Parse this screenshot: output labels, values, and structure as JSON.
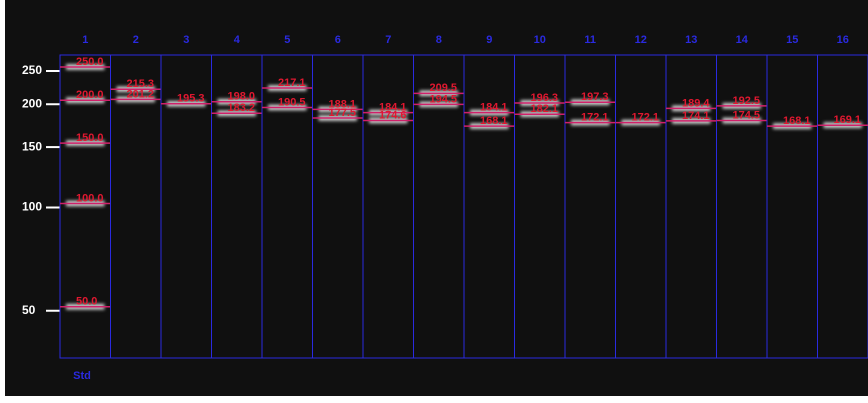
{
  "std_label": "Std",
  "axis_labels": [
    250,
    200,
    150,
    100,
    50
  ],
  "lanes": [
    {
      "number": "1",
      "bands": [
        "250.0",
        "200.0",
        "150.0",
        "100.0",
        "50.0"
      ]
    },
    {
      "number": "2",
      "bands": [
        "215.3",
        "201.2"
      ]
    },
    {
      "number": "3",
      "bands": [
        "195.3"
      ]
    },
    {
      "number": "4",
      "bands": [
        "198.0",
        "183.2"
      ]
    },
    {
      "number": "5",
      "bands": [
        "217.1",
        "190.5"
      ]
    },
    {
      "number": "6",
      "bands": [
        "188.1",
        "177.5"
      ]
    },
    {
      "number": "7",
      "bands": [
        "184.1",
        "174.6"
      ]
    },
    {
      "number": "8",
      "bands": [
        "209.5",
        "194.5"
      ]
    },
    {
      "number": "9",
      "bands": [
        "184.1",
        "168.1"
      ]
    },
    {
      "number": "10",
      "bands": [
        "196.3",
        "182.1"
      ]
    },
    {
      "number": "11",
      "bands": [
        "197.3",
        "172.1"
      ]
    },
    {
      "number": "12",
      "bands": [
        "172.1"
      ]
    },
    {
      "number": "13",
      "bands": [
        "189.4",
        "174.1"
      ]
    },
    {
      "number": "14",
      "bands": [
        "192.5",
        "174.5"
      ]
    },
    {
      "number": "15",
      "bands": [
        "168.1"
      ]
    },
    {
      "number": "16",
      "bands": [
        "169.1"
      ]
    }
  ]
}
